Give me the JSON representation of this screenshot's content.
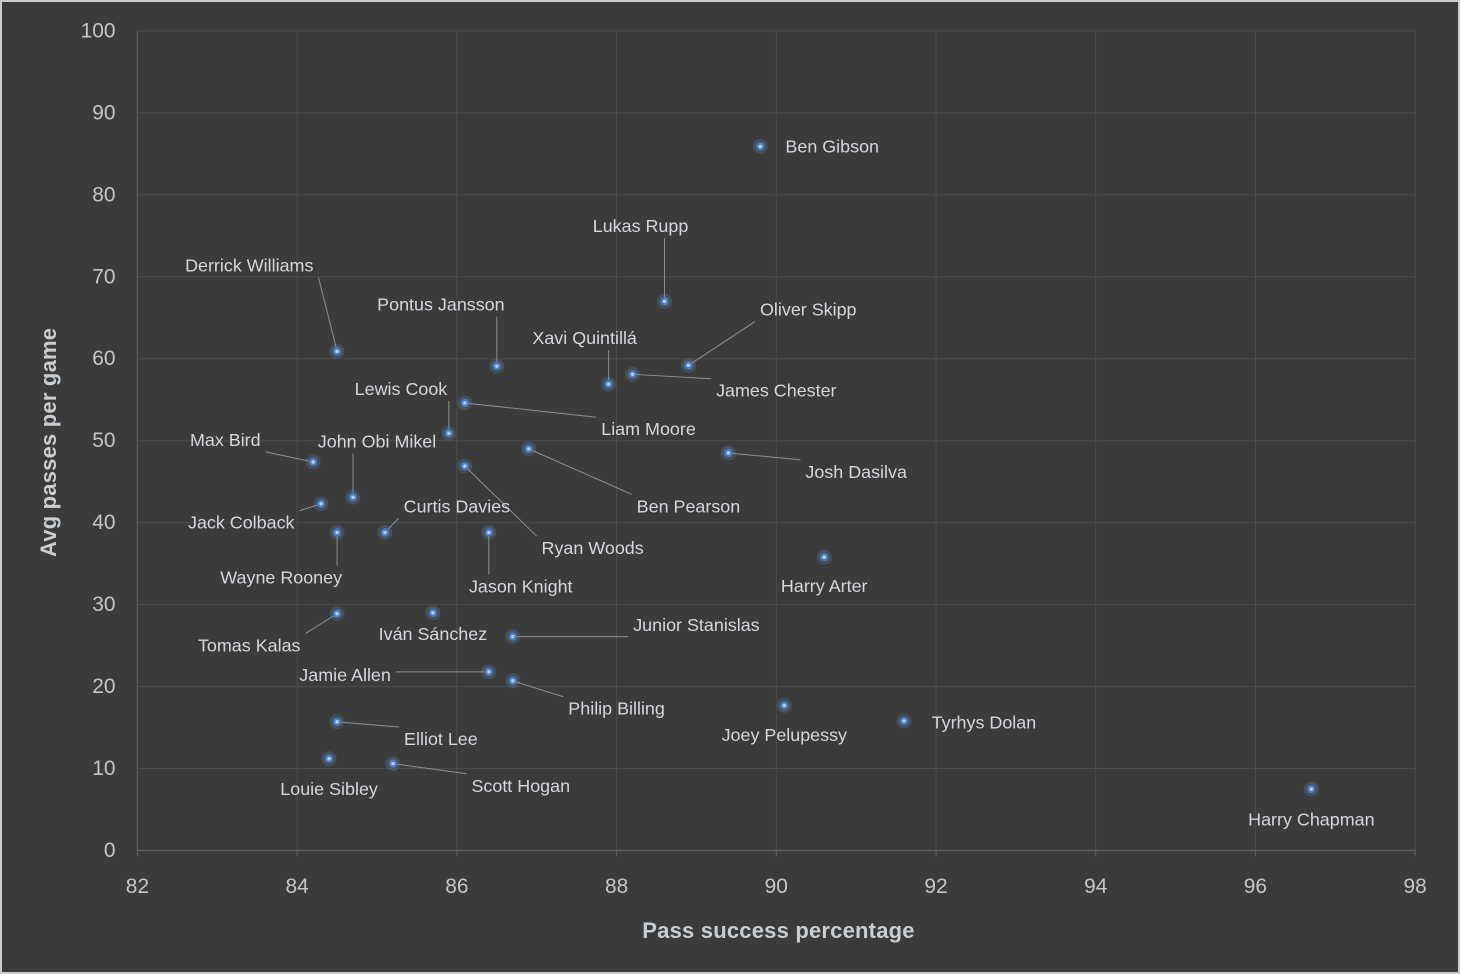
{
  "chart_data": {
    "type": "scatter",
    "title": "",
    "xlabel": "Pass success percentage",
    "ylabel": "Avg passes per game",
    "xlim": [
      82,
      98
    ],
    "ylim": [
      0,
      100
    ],
    "x_ticks": [
      82,
      84,
      86,
      88,
      90,
      92,
      94,
      96,
      98
    ],
    "y_ticks": [
      0,
      10,
      20,
      30,
      40,
      50,
      60,
      70,
      80,
      90,
      100
    ],
    "grid": true,
    "legend": false,
    "colors": {
      "background": "#3b3b3b",
      "grid": "#4c4c4c",
      "axis_line": "#5f5f5f",
      "tick_text": "#c4c6c9",
      "title_text": "#c9ced3",
      "label_text": "#d4d8dd",
      "leader": "#949a9f",
      "point_glow": "rgba(110,150,210,0.22)",
      "point": "#4d7cbe",
      "point_core": "#b7cdf0"
    },
    "points": [
      {
        "name": "Ben Gibson",
        "x": 89.8,
        "y": 85.9,
        "label_x": 90.7,
        "label_y": 85.9,
        "leader": false
      },
      {
        "name": "Lukas Rupp",
        "x": 88.6,
        "y": 67.0,
        "label_x": 88.3,
        "label_y": 76.2,
        "leader": true
      },
      {
        "name": "Derrick Williams",
        "x": 84.5,
        "y": 60.9,
        "label_x": 83.4,
        "label_y": 71.4,
        "leader": true
      },
      {
        "name": "Pontus Jansson",
        "x": 86.5,
        "y": 59.1,
        "label_x": 85.8,
        "label_y": 66.6,
        "leader": true
      },
      {
        "name": "Oliver Skipp",
        "x": 88.9,
        "y": 59.2,
        "label_x": 90.4,
        "label_y": 66.0,
        "leader": true
      },
      {
        "name": "James Chester",
        "x": 88.2,
        "y": 58.1,
        "label_x": 90.0,
        "label_y": 56.1,
        "leader": true
      },
      {
        "name": "Xavi Quintillá",
        "x": 87.9,
        "y": 56.9,
        "label_x": 87.6,
        "label_y": 62.5,
        "leader": true
      },
      {
        "name": "Liam Moore",
        "x": 86.1,
        "y": 54.6,
        "label_x": 88.4,
        "label_y": 51.4,
        "leader": true
      },
      {
        "name": "Lewis Cook",
        "x": 85.9,
        "y": 50.9,
        "label_x": 85.3,
        "label_y": 56.3,
        "leader": true
      },
      {
        "name": "Ben Pearson",
        "x": 86.9,
        "y": 49.0,
        "label_x": 88.9,
        "label_y": 42.0,
        "leader": true
      },
      {
        "name": "Josh Dasilva",
        "x": 89.4,
        "y": 48.5,
        "label_x": 91.0,
        "label_y": 46.2,
        "leader": true
      },
      {
        "name": "Max Bird",
        "x": 84.2,
        "y": 47.4,
        "label_x": 83.1,
        "label_y": 50.1,
        "leader": true
      },
      {
        "name": "Ryan Woods",
        "x": 86.1,
        "y": 46.9,
        "label_x": 87.7,
        "label_y": 36.9,
        "leader": true
      },
      {
        "name": "John Obi Mikel",
        "x": 84.7,
        "y": 43.1,
        "label_x": 85.0,
        "label_y": 49.9,
        "leader": true
      },
      {
        "name": "Jack Colback",
        "x": 84.3,
        "y": 42.3,
        "label_x": 83.3,
        "label_y": 40.0,
        "leader": true
      },
      {
        "name": "Wayne Rooney",
        "x": 84.5,
        "y": 38.8,
        "label_x": 83.8,
        "label_y": 33.3,
        "leader": true
      },
      {
        "name": "Curtis Davies",
        "x": 85.1,
        "y": 38.8,
        "label_x": 86.0,
        "label_y": 42.0,
        "leader": true
      },
      {
        "name": "Jason Knight",
        "x": 86.4,
        "y": 38.8,
        "label_x": 86.8,
        "label_y": 32.2,
        "leader": true
      },
      {
        "name": "Harry Arter",
        "x": 90.6,
        "y": 35.8,
        "label_x": 90.6,
        "label_y": 32.3,
        "leader": false
      },
      {
        "name": "Tomas Kalas",
        "x": 84.5,
        "y": 28.9,
        "label_x": 83.4,
        "label_y": 25.0,
        "leader": true
      },
      {
        "name": "Iván Sánchez",
        "x": 85.7,
        "y": 29.0,
        "label_x": 85.7,
        "label_y": 26.4,
        "leader": false
      },
      {
        "name": "Junior Stanislas",
        "x": 86.7,
        "y": 26.1,
        "label_x": 89.0,
        "label_y": 27.5,
        "leader": true
      },
      {
        "name": "Jamie Allen",
        "x": 86.4,
        "y": 21.8,
        "label_x": 84.6,
        "label_y": 21.4,
        "leader": true
      },
      {
        "name": "Philip Billing",
        "x": 86.7,
        "y": 20.7,
        "label_x": 88.0,
        "label_y": 17.3,
        "leader": true
      },
      {
        "name": "Joey Pelupessy",
        "x": 90.1,
        "y": 17.7,
        "label_x": 90.1,
        "label_y": 14.1,
        "leader": false
      },
      {
        "name": "Tyrhys Dolan",
        "x": 91.6,
        "y": 15.8,
        "label_x": 92.6,
        "label_y": 15.6,
        "leader": false
      },
      {
        "name": "Elliot Lee",
        "x": 84.5,
        "y": 15.7,
        "label_x": 85.8,
        "label_y": 13.6,
        "leader": true
      },
      {
        "name": "Louie Sibley",
        "x": 84.4,
        "y": 11.2,
        "label_x": 84.4,
        "label_y": 7.5,
        "leader": false
      },
      {
        "name": "Scott Hogan",
        "x": 85.2,
        "y": 10.6,
        "label_x": 86.8,
        "label_y": 7.9,
        "leader": true
      },
      {
        "name": "Harry Chapman",
        "x": 96.7,
        "y": 7.5,
        "label_x": 96.7,
        "label_y": 3.8,
        "leader": false
      }
    ]
  }
}
